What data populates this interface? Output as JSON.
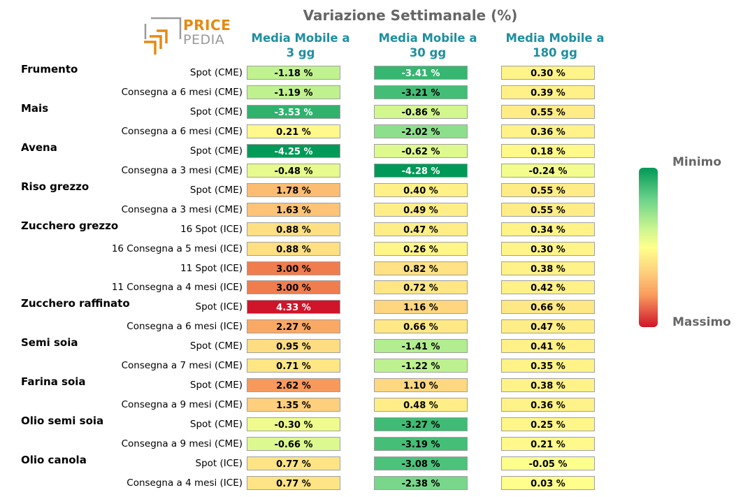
{
  "title": "Variazione Settimanale (%)",
  "logo": {
    "top_text": "PRICE",
    "bottom_text": "PEDIA",
    "accent_color": "#e58a12",
    "gray_color": "#9a9a9a"
  },
  "legend": {
    "min_label": "Minimo",
    "max_label": "Massimo",
    "min_color": "#009957",
    "mid_color": "#ffff8c",
    "max_color": "#d0142a"
  },
  "chart_data": {
    "type": "heatmap",
    "title": "Variazione Settimanale (%)",
    "columns": [
      "Media Mobile a\n3 gg",
      "Media Mobile a\n30 gg",
      "Media Mobile a\n180 gg"
    ],
    "column_lines": [
      [
        "Media Mobile a",
        "3 gg"
      ],
      [
        "Media Mobile a",
        "30 gg"
      ],
      [
        "Media Mobile a",
        "180 gg"
      ]
    ],
    "unit": "%",
    "rows": [
      {
        "group": "Frumento",
        "label": "Spot (CME)",
        "values": [
          -1.18,
          -3.41,
          0.3
        ]
      },
      {
        "group": "",
        "label": "Consegna a 6 mesi (CME)",
        "values": [
          -1.19,
          -3.21,
          0.39
        ]
      },
      {
        "group": "Mais",
        "label": "Spot (CME)",
        "values": [
          -3.53,
          -0.86,
          0.55
        ]
      },
      {
        "group": "",
        "label": "Consegna a 6 mesi (CME)",
        "values": [
          0.21,
          -2.02,
          0.36
        ]
      },
      {
        "group": "Avena",
        "label": "Spot (CME)",
        "values": [
          -4.25,
          -0.62,
          0.18
        ]
      },
      {
        "group": "",
        "label": "Consegna a 3 mesi (CME)",
        "values": [
          -0.48,
          -4.28,
          -0.24
        ]
      },
      {
        "group": "Riso grezzo",
        "label": "Spot (CME)",
        "values": [
          1.78,
          0.4,
          0.55
        ]
      },
      {
        "group": "",
        "label": "Consegna a 3 mesi (CME)",
        "values": [
          1.63,
          0.49,
          0.55
        ]
      },
      {
        "group": "Zucchero grezzo",
        "label": "16 Spot (ICE)",
        "values": [
          0.88,
          0.47,
          0.34
        ]
      },
      {
        "group": "",
        "label": "16 Consegna a 5 mesi (ICE)",
        "values": [
          0.88,
          0.26,
          0.3
        ]
      },
      {
        "group": "",
        "label": "11 Spot (ICE)",
        "values": [
          3.0,
          0.82,
          0.38
        ]
      },
      {
        "group": "",
        "label": "11 Consegna a 4 mesi (ICE)",
        "values": [
          3.0,
          0.72,
          0.42
        ]
      },
      {
        "group": "Zucchero raffinato",
        "label": "Spot (ICE)",
        "values": [
          4.33,
          1.16,
          0.66
        ]
      },
      {
        "group": "",
        "label": "Consegna a 6 mesi (ICE)",
        "values": [
          2.27,
          0.66,
          0.47
        ]
      },
      {
        "group": "Semi soia",
        "label": "Spot (CME)",
        "values": [
          0.95,
          -1.41,
          0.41
        ]
      },
      {
        "group": "",
        "label": "Consegna a 7 mesi (CME)",
        "values": [
          0.71,
          -1.22,
          0.35
        ]
      },
      {
        "group": "Farina soia",
        "label": "Spot (CME)",
        "values": [
          2.62,
          1.1,
          0.38
        ]
      },
      {
        "group": "",
        "label": "Consegna a 9 mesi (CME)",
        "values": [
          1.35,
          0.48,
          0.36
        ]
      },
      {
        "group": "Olio semi soia",
        "label": "Spot (CME)",
        "values": [
          -0.3,
          -3.27,
          0.25
        ]
      },
      {
        "group": "",
        "label": "Consegna a 9 mesi (CME)",
        "values": [
          -0.66,
          -3.19,
          0.21
        ]
      },
      {
        "group": "Olio canola",
        "label": "Spot (ICE)",
        "values": [
          0.77,
          -3.08,
          -0.05
        ]
      },
      {
        "group": "",
        "label": "Consegna a 4 mesi (ICE)",
        "values": [
          0.77,
          -2.38,
          0.03
        ]
      }
    ]
  }
}
